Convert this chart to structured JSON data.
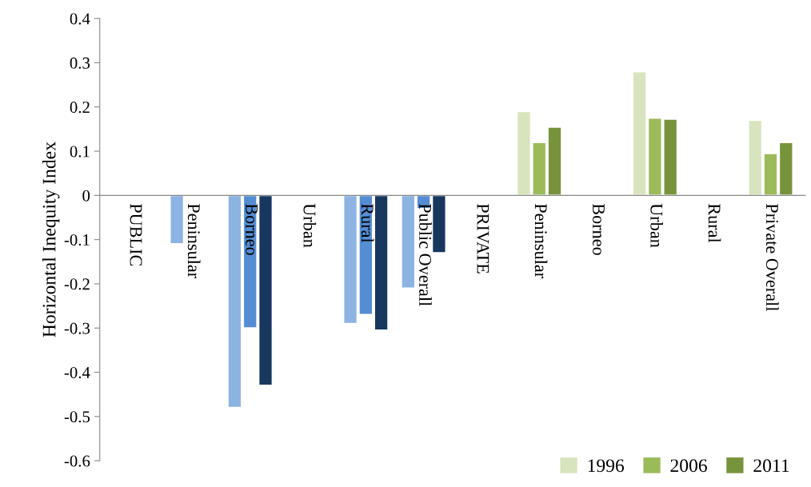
{
  "chart_data": {
    "type": "bar",
    "ylabel": "Horizontal Inequity Index",
    "categories": [
      "PUBLIC",
      "Peninsular",
      "Borneo",
      "Urban",
      "Rural",
      "Public Overall",
      "PRIVATE",
      "Peninsular",
      "Borneo",
      "Urban",
      "Rural",
      "Private Overall"
    ],
    "series": [
      {
        "name": "1996",
        "color": "#d7e4bd",
        "colors": [
          "#8db3e2",
          "#8db3e2",
          "#8db3e2",
          "#8db3e2",
          "#8db3e2",
          "#8db3e2",
          "#d7e4bd",
          "#d7e4bd",
          "#d7e4bd",
          "#d7e4bd",
          "#d7e4bd",
          "#d7e4bd"
        ],
        "values": [
          null,
          -0.11,
          -0.48,
          null,
          -0.29,
          -0.21,
          null,
          0.19,
          null,
          0.28,
          null,
          0.17
        ]
      },
      {
        "name": "2006",
        "color": "#9bbb59",
        "colors": [
          "#548dd4",
          "#548dd4",
          "#548dd4",
          "#548dd4",
          "#548dd4",
          "#548dd4",
          "#9bbb59",
          "#9bbb59",
          "#9bbb59",
          "#9bbb59",
          "#9bbb59",
          "#9bbb59"
        ],
        "values": [
          null,
          null,
          -0.3,
          null,
          -0.27,
          -0.03,
          null,
          0.12,
          null,
          0.175,
          null,
          0.095
        ]
      },
      {
        "name": "2011",
        "color": "#77933c",
        "colors": [
          "#17375e",
          "#17375e",
          "#17375e",
          "#17375e",
          "#17375e",
          "#17375e",
          "#77933c",
          "#77933c",
          "#77933c",
          "#77933c",
          "#77933c",
          "#77933c"
        ],
        "values": [
          null,
          null,
          -0.43,
          null,
          -0.305,
          -0.13,
          null,
          0.155,
          null,
          0.173,
          null,
          0.12
        ]
      }
    ],
    "ylim": [
      -0.6,
      0.4
    ],
    "yticks": [
      {
        "value": -0.6,
        "label": "-0.6"
      },
      {
        "value": -0.5,
        "label": "-0.5"
      },
      {
        "value": -0.4,
        "label": "-0.4"
      },
      {
        "value": -0.3,
        "label": "-0.3"
      },
      {
        "value": -0.2,
        "label": "-0.2"
      },
      {
        "value": -0.1,
        "label": "-0.1"
      },
      0,
      0.1,
      0.2,
      0.3,
      0.4
    ],
    "grid": false,
    "legend": "bottom right"
  }
}
